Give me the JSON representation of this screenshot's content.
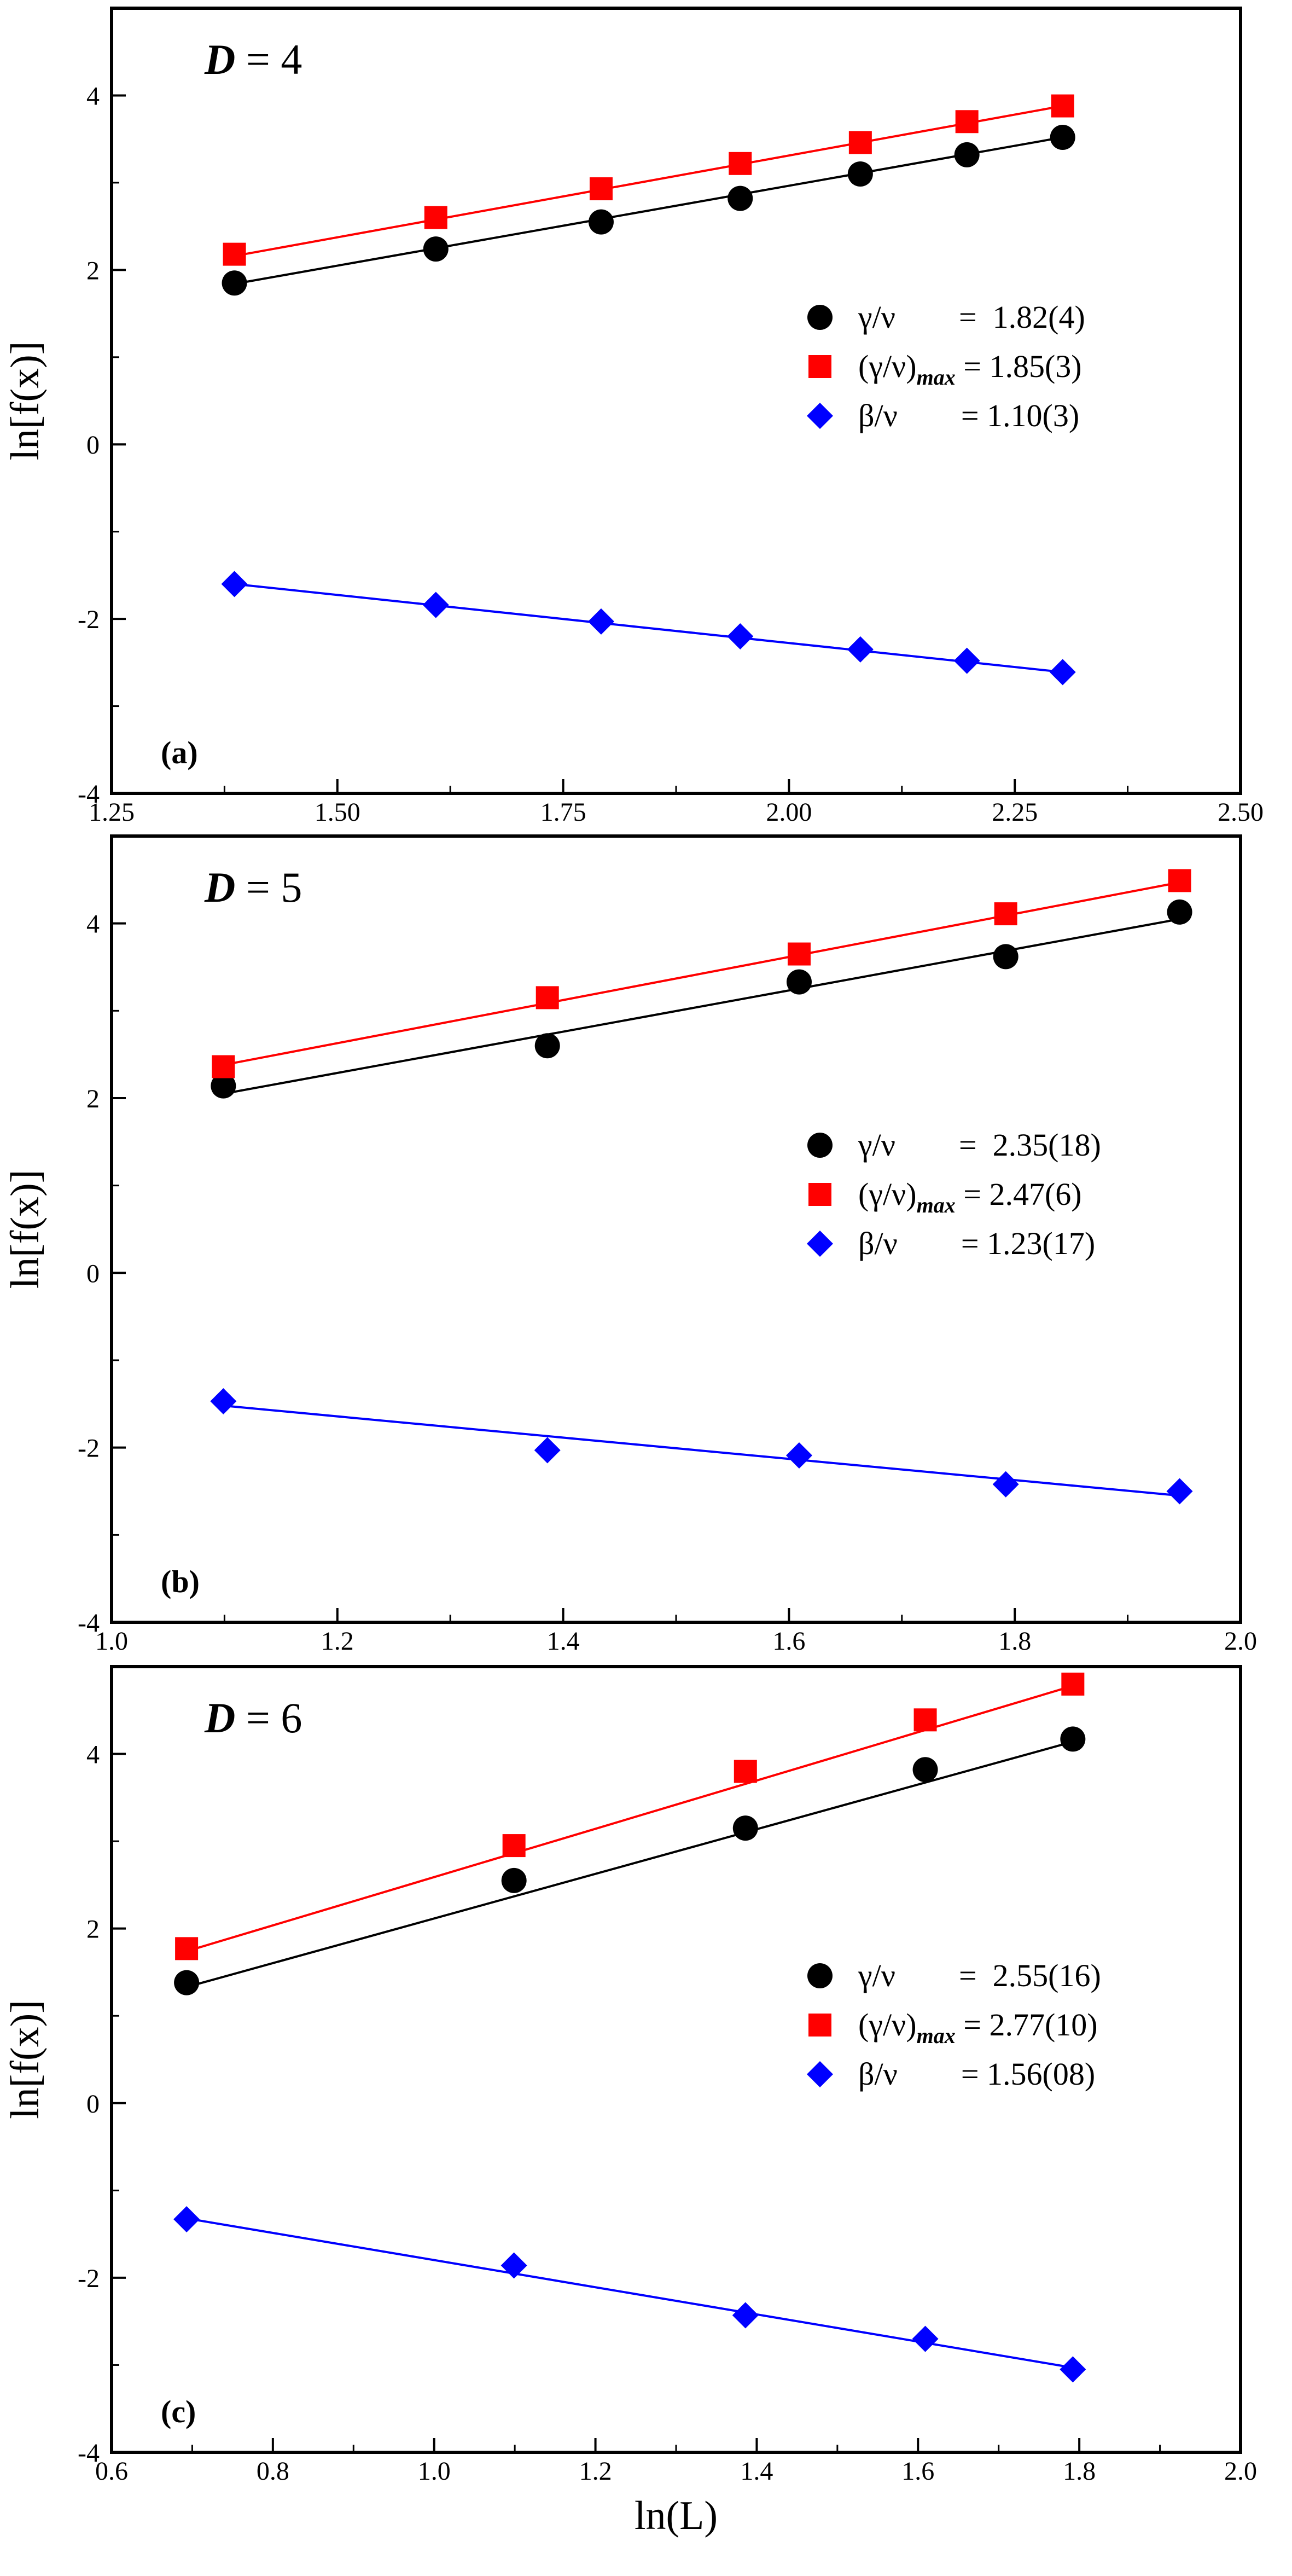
{
  "chart_data": [
    {
      "type": "scatter",
      "panel_label": "(a)",
      "dimension_label": "D = 4",
      "dimension_symbol": "D",
      "dimension_value": "= 4",
      "ylabel": "ln[f(x)]",
      "xlabel": "",
      "xlim": [
        1.25,
        2.5
      ],
      "ylim": [
        -4,
        5
      ],
      "xticks": [
        1.25,
        1.5,
        1.75,
        2.0,
        2.25,
        2.5
      ],
      "xtick_labels": [
        "1.25",
        "1.50",
        "1.75",
        "2.00",
        "2.25",
        "2.50"
      ],
      "yticks": [
        -4,
        -2,
        0,
        2,
        4
      ],
      "ytick_labels": [
        "-4",
        "-2",
        "0",
        "2",
        "4"
      ],
      "series": [
        {
          "name": "γ/ν",
          "legend_text": "γ/ν        =  1.82(4)",
          "marker": "circle",
          "color": "#000000",
          "x": [
            1.386,
            1.609,
            1.792,
            1.946,
            2.079,
            2.197,
            2.303
          ],
          "y": [
            1.85,
            2.24,
            2.55,
            2.82,
            3.1,
            3.32,
            3.52
          ],
          "fit": [
            [
              1.386,
              1.84
            ],
            [
              2.303,
              3.52
            ]
          ]
        },
        {
          "name": "(γ/ν)max",
          "legend_main": "(γ/ν)",
          "legend_sub": "max",
          "legend_value": " = 1.85(3)",
          "marker": "square",
          "color": "#ff0000",
          "x": [
            1.386,
            1.609,
            1.792,
            1.946,
            2.079,
            2.197,
            2.303
          ],
          "y": [
            2.18,
            2.6,
            2.93,
            3.22,
            3.46,
            3.7,
            3.88
          ],
          "fit": [
            [
              1.386,
              2.16
            ],
            [
              2.303,
              3.88
            ]
          ]
        },
        {
          "name": "β/ν",
          "legend_text": "β/ν        = 1.10(3)",
          "marker": "diamond",
          "color": "#0000ff",
          "x": [
            1.386,
            1.609,
            1.792,
            1.946,
            2.079,
            2.197,
            2.303
          ],
          "y": [
            -1.6,
            -1.84,
            -2.03,
            -2.2,
            -2.35,
            -2.48,
            -2.61
          ],
          "fit": [
            [
              1.386,
              -1.6
            ],
            [
              2.303,
              -2.61
            ]
          ]
        }
      ]
    },
    {
      "type": "scatter",
      "panel_label": "(b)",
      "dimension_label": "D = 5",
      "dimension_symbol": "D",
      "dimension_value": "= 5",
      "ylabel": "ln[f(x)]",
      "xlabel": "",
      "xlim": [
        1.0,
        2.0
      ],
      "ylim": [
        -4,
        5
      ],
      "xticks": [
        1.0,
        1.2,
        1.4,
        1.6,
        1.8,
        2.0
      ],
      "xtick_labels": [
        "1.0",
        "1.2",
        "1.4",
        "1.6",
        "1.8",
        "2.0"
      ],
      "yticks": [
        -4,
        -2,
        0,
        2,
        4
      ],
      "ytick_labels": [
        "-4",
        "-2",
        "0",
        "2",
        "4"
      ],
      "series": [
        {
          "name": "γ/ν",
          "legend_text": "γ/ν        =  2.35(18)",
          "marker": "circle",
          "color": "#000000",
          "x": [
            1.099,
            1.386,
            1.609,
            1.792,
            1.946
          ],
          "y": [
            2.14,
            2.6,
            3.33,
            3.62,
            4.13
          ],
          "fit": [
            [
              1.099,
              2.05
            ],
            [
              1.946,
              4.05
            ]
          ]
        },
        {
          "name": "(γ/ν)max",
          "legend_main": "(γ/ν)",
          "legend_sub": "max",
          "legend_value": " = 2.47(6)",
          "marker": "square",
          "color": "#ff0000",
          "x": [
            1.099,
            1.386,
            1.609,
            1.792,
            1.946
          ],
          "y": [
            2.36,
            3.15,
            3.65,
            4.11,
            4.49
          ],
          "fit": [
            [
              1.099,
              2.38
            ],
            [
              1.946,
              4.47
            ]
          ]
        },
        {
          "name": "β/ν",
          "legend_text": "β/ν        = 1.23(17)",
          "marker": "diamond",
          "color": "#0000ff",
          "x": [
            1.099,
            1.386,
            1.609,
            1.792,
            1.946
          ],
          "y": [
            -1.47,
            -2.03,
            -2.09,
            -2.42,
            -2.5
          ],
          "fit": [
            [
              1.099,
              -1.52
            ],
            [
              1.946,
              -2.55
            ]
          ]
        }
      ]
    },
    {
      "type": "scatter",
      "panel_label": "(c)",
      "dimension_label": "D = 6",
      "dimension_symbol": "D",
      "dimension_value": "= 6",
      "ylabel": "ln[f(x)]",
      "xlabel": "ln(L)",
      "xlim": [
        0.6,
        2.0
      ],
      "ylim": [
        -4,
        5
      ],
      "xticks": [
        0.6,
        0.8,
        1.0,
        1.2,
        1.4,
        1.6,
        1.8,
        2.0
      ],
      "xtick_labels": [
        "0.6",
        "0.8",
        "1.0",
        "1.2",
        "1.4",
        "1.6",
        "1.8",
        "2.0"
      ],
      "yticks": [
        -4,
        -2,
        0,
        2,
        4
      ],
      "ytick_labels": [
        "-4",
        "-2",
        "0",
        "2",
        "4"
      ],
      "series": [
        {
          "name": "γ/ν",
          "legend_text": "γ/ν        =  2.55(16)",
          "marker": "circle",
          "color": "#000000",
          "x": [
            0.693,
            1.099,
            1.386,
            1.609,
            1.792
          ],
          "y": [
            1.38,
            2.55,
            3.15,
            3.82,
            4.17
          ],
          "fit": [
            [
              0.693,
              1.33
            ],
            [
              1.792,
              4.14
            ]
          ]
        },
        {
          "name": "(γ/ν)max",
          "legend_main": "(γ/ν)",
          "legend_sub": "max",
          "legend_value": " = 2.77(10)",
          "marker": "square",
          "color": "#ff0000",
          "x": [
            0.693,
            1.099,
            1.386,
            1.609,
            1.792
          ],
          "y": [
            1.77,
            2.95,
            3.8,
            4.39,
            4.8
          ],
          "fit": [
            [
              0.693,
              1.74
            ],
            [
              1.792,
              4.78
            ]
          ]
        },
        {
          "name": "β/ν",
          "legend_text": "β/ν        = 1.56(08)",
          "marker": "diamond",
          "color": "#0000ff",
          "x": [
            0.693,
            1.099,
            1.386,
            1.609,
            1.792
          ],
          "y": [
            -1.33,
            -1.86,
            -2.43,
            -2.7,
            -3.05
          ],
          "fit": [
            [
              0.693,
              -1.32
            ],
            [
              1.792,
              -3.03
            ]
          ]
        }
      ]
    }
  ]
}
